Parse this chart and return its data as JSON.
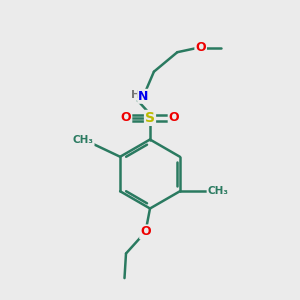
{
  "background_color": "#ebebeb",
  "atom_colors": {
    "C": "#2a7a60",
    "N": "#0000ee",
    "O": "#ee0000",
    "S": "#bbbb00"
  },
  "bond_color": "#2a7a60",
  "bond_width": 1.8,
  "figsize": [
    3.0,
    3.0
  ],
  "dpi": 100,
  "xlim": [
    0,
    10
  ],
  "ylim": [
    0,
    10
  ]
}
